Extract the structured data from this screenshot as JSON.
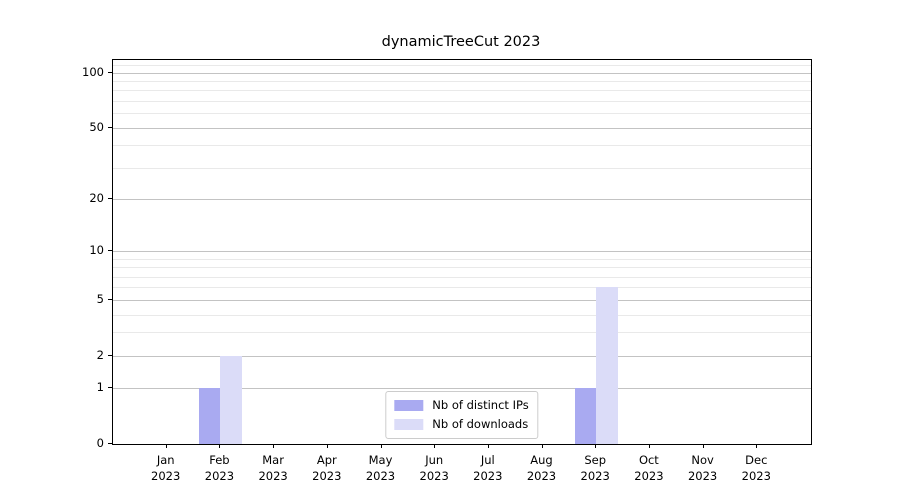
{
  "title": "dynamicTreeCut 2023",
  "colors": {
    "distinct_ips": "#a9aaf1",
    "downloads": "#dbdcf8",
    "major_grid": "#c3c3c3",
    "minor_grid": "#e9e9e9",
    "spine": "#000000",
    "background": "#ffffff"
  },
  "chart_data": {
    "type": "bar",
    "title": "dynamicTreeCut 2023",
    "categories": [
      "Jan 2023",
      "Feb 2023",
      "Mar 2023",
      "Apr 2023",
      "May 2023",
      "Jun 2023",
      "Jul 2023",
      "Aug 2023",
      "Sep 2023",
      "Oct 2023",
      "Nov 2023",
      "Dec 2023"
    ],
    "x_tick_months": [
      "Jan",
      "Feb",
      "Mar",
      "Apr",
      "May",
      "Jun",
      "Jul",
      "Aug",
      "Sep",
      "Oct",
      "Nov",
      "Dec"
    ],
    "x_tick_year": "2023",
    "series": [
      {
        "name": "Nb of distinct IPs",
        "color": "#a9aaf1",
        "values": [
          0,
          1,
          0,
          0,
          0,
          0,
          0,
          0,
          1,
          0,
          0,
          0
        ]
      },
      {
        "name": "Nb of downloads",
        "color": "#dbdcf8",
        "values": [
          0,
          2,
          0,
          0,
          0,
          0,
          0,
          0,
          6,
          0,
          0,
          0
        ]
      }
    ],
    "xlabel": "",
    "ylabel": "",
    "y_scale": "log1p",
    "y_ticks": [
      0,
      1,
      2,
      5,
      10,
      20,
      50,
      100
    ],
    "minor_gridline_values": [
      3,
      4,
      6,
      7,
      8,
      9,
      30,
      40,
      60,
      70,
      80,
      90,
      110
    ],
    "ylim": [
      0,
      117
    ],
    "grid": "horizontal",
    "legend_position": "lower center inside"
  }
}
